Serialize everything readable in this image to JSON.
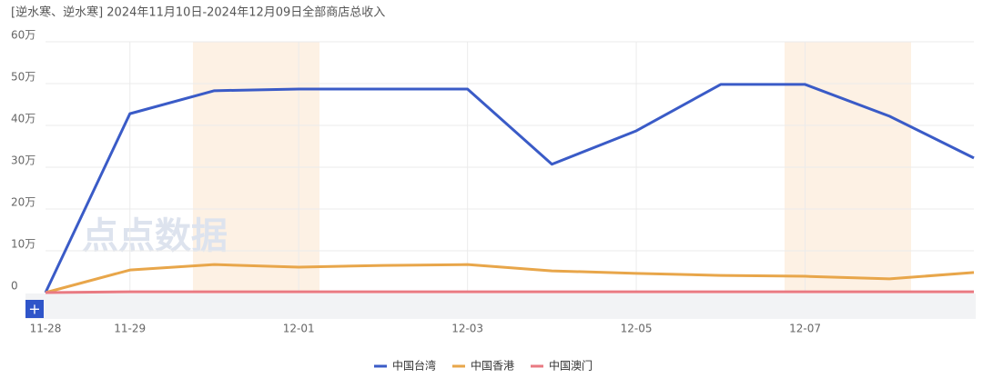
{
  "chart_data": {
    "type": "line",
    "title": "[逆水寒、逆水寒] 2024年11月10日-2024年12月09日全部商店总收入",
    "watermark": "点点数据",
    "zoom_button": "+",
    "categories": [
      "11-28",
      "11-29",
      null,
      "12-01",
      null,
      "12-03",
      null,
      "12-05",
      null,
      "12-07",
      null,
      null
    ],
    "series": [
      {
        "name": "中国台湾",
        "color": "#3a5bc7",
        "values": [
          0,
          42.8,
          48.3,
          48.7,
          48.7,
          48.7,
          30.7,
          38.7,
          49.8,
          49.8,
          42.2,
          32.2
        ]
      },
      {
        "name": "中国香港",
        "color": "#e8a64a",
        "values": [
          0,
          5.4,
          6.7,
          6.1,
          6.5,
          6.7,
          5.2,
          4.6,
          4.1,
          3.9,
          3.3,
          4.8
        ]
      },
      {
        "name": "中国澳门",
        "color": "#e97a82",
        "values": [
          0,
          0.2,
          0.2,
          0.2,
          0.2,
          0.2,
          0.2,
          0.2,
          0.2,
          0.2,
          0.2,
          0.2
        ]
      }
    ],
    "ylim": [
      0,
      60
    ],
    "yticks": [
      0,
      {
        "value": 10,
        "label": "10万"
      },
      {
        "value": 20,
        "label": "20万"
      },
      {
        "value": 30,
        "label": "30万"
      },
      {
        "value": 40,
        "label": "40万"
      },
      {
        "value": 50,
        "label": "50万"
      },
      {
        "value": 60,
        "label": "60万"
      }
    ],
    "grid": true
  }
}
